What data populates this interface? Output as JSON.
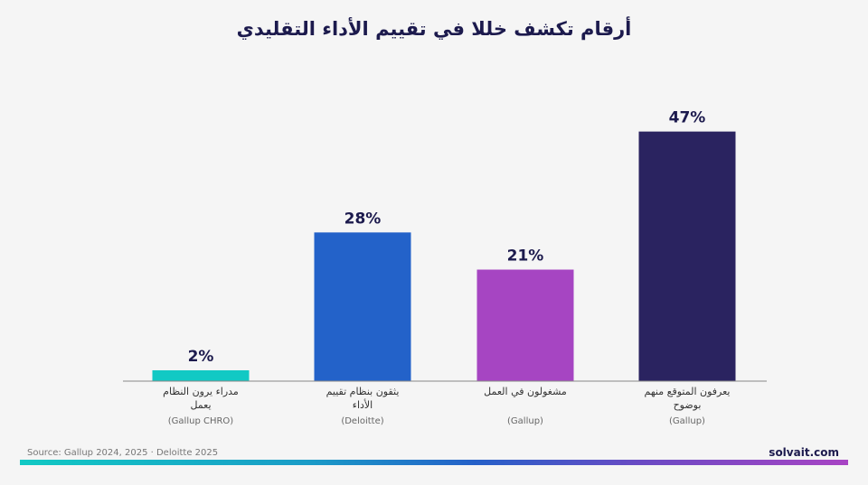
{
  "header": {
    "title": "أرقام تكشف خللا في تقييم الأداء التقليدي"
  },
  "footer": {
    "source": "Source: Gallup 2024, 2025 · Deloitte 2025",
    "brand": "solvait.com"
  },
  "chart_data": {
    "type": "bar",
    "title": "أرقام تكشف خللا في تقييم الأداء التقليدي",
    "xlabel": "",
    "ylabel": "",
    "ylim": [
      0,
      50
    ],
    "grid": false,
    "legend": "none",
    "unit": "%",
    "bars": [
      {
        "label_lines": [
          "مدراء يرون النظام",
          "يعمل"
        ],
        "source": "(Gallup CHRO)",
        "value": 2,
        "value_label": "2%",
        "color": "#11c9c4"
      },
      {
        "label_lines": [
          "يثقون بنظام تقييم",
          "الأداء"
        ],
        "source": "(Deloitte)",
        "value": 28,
        "value_label": "28%",
        "color": "#2362c9"
      },
      {
        "label_lines": [
          "مشغولون في العمل"
        ],
        "source": "(Gallup)",
        "value": 21,
        "value_label": "21%",
        "color": "#a645c2"
      },
      {
        "label_lines": [
          "يعرفون المتوقع منهم",
          "بوضوح"
        ],
        "source": "(Gallup)",
        "value": 47,
        "value_label": "47%",
        "color": "#2a2360"
      }
    ]
  }
}
